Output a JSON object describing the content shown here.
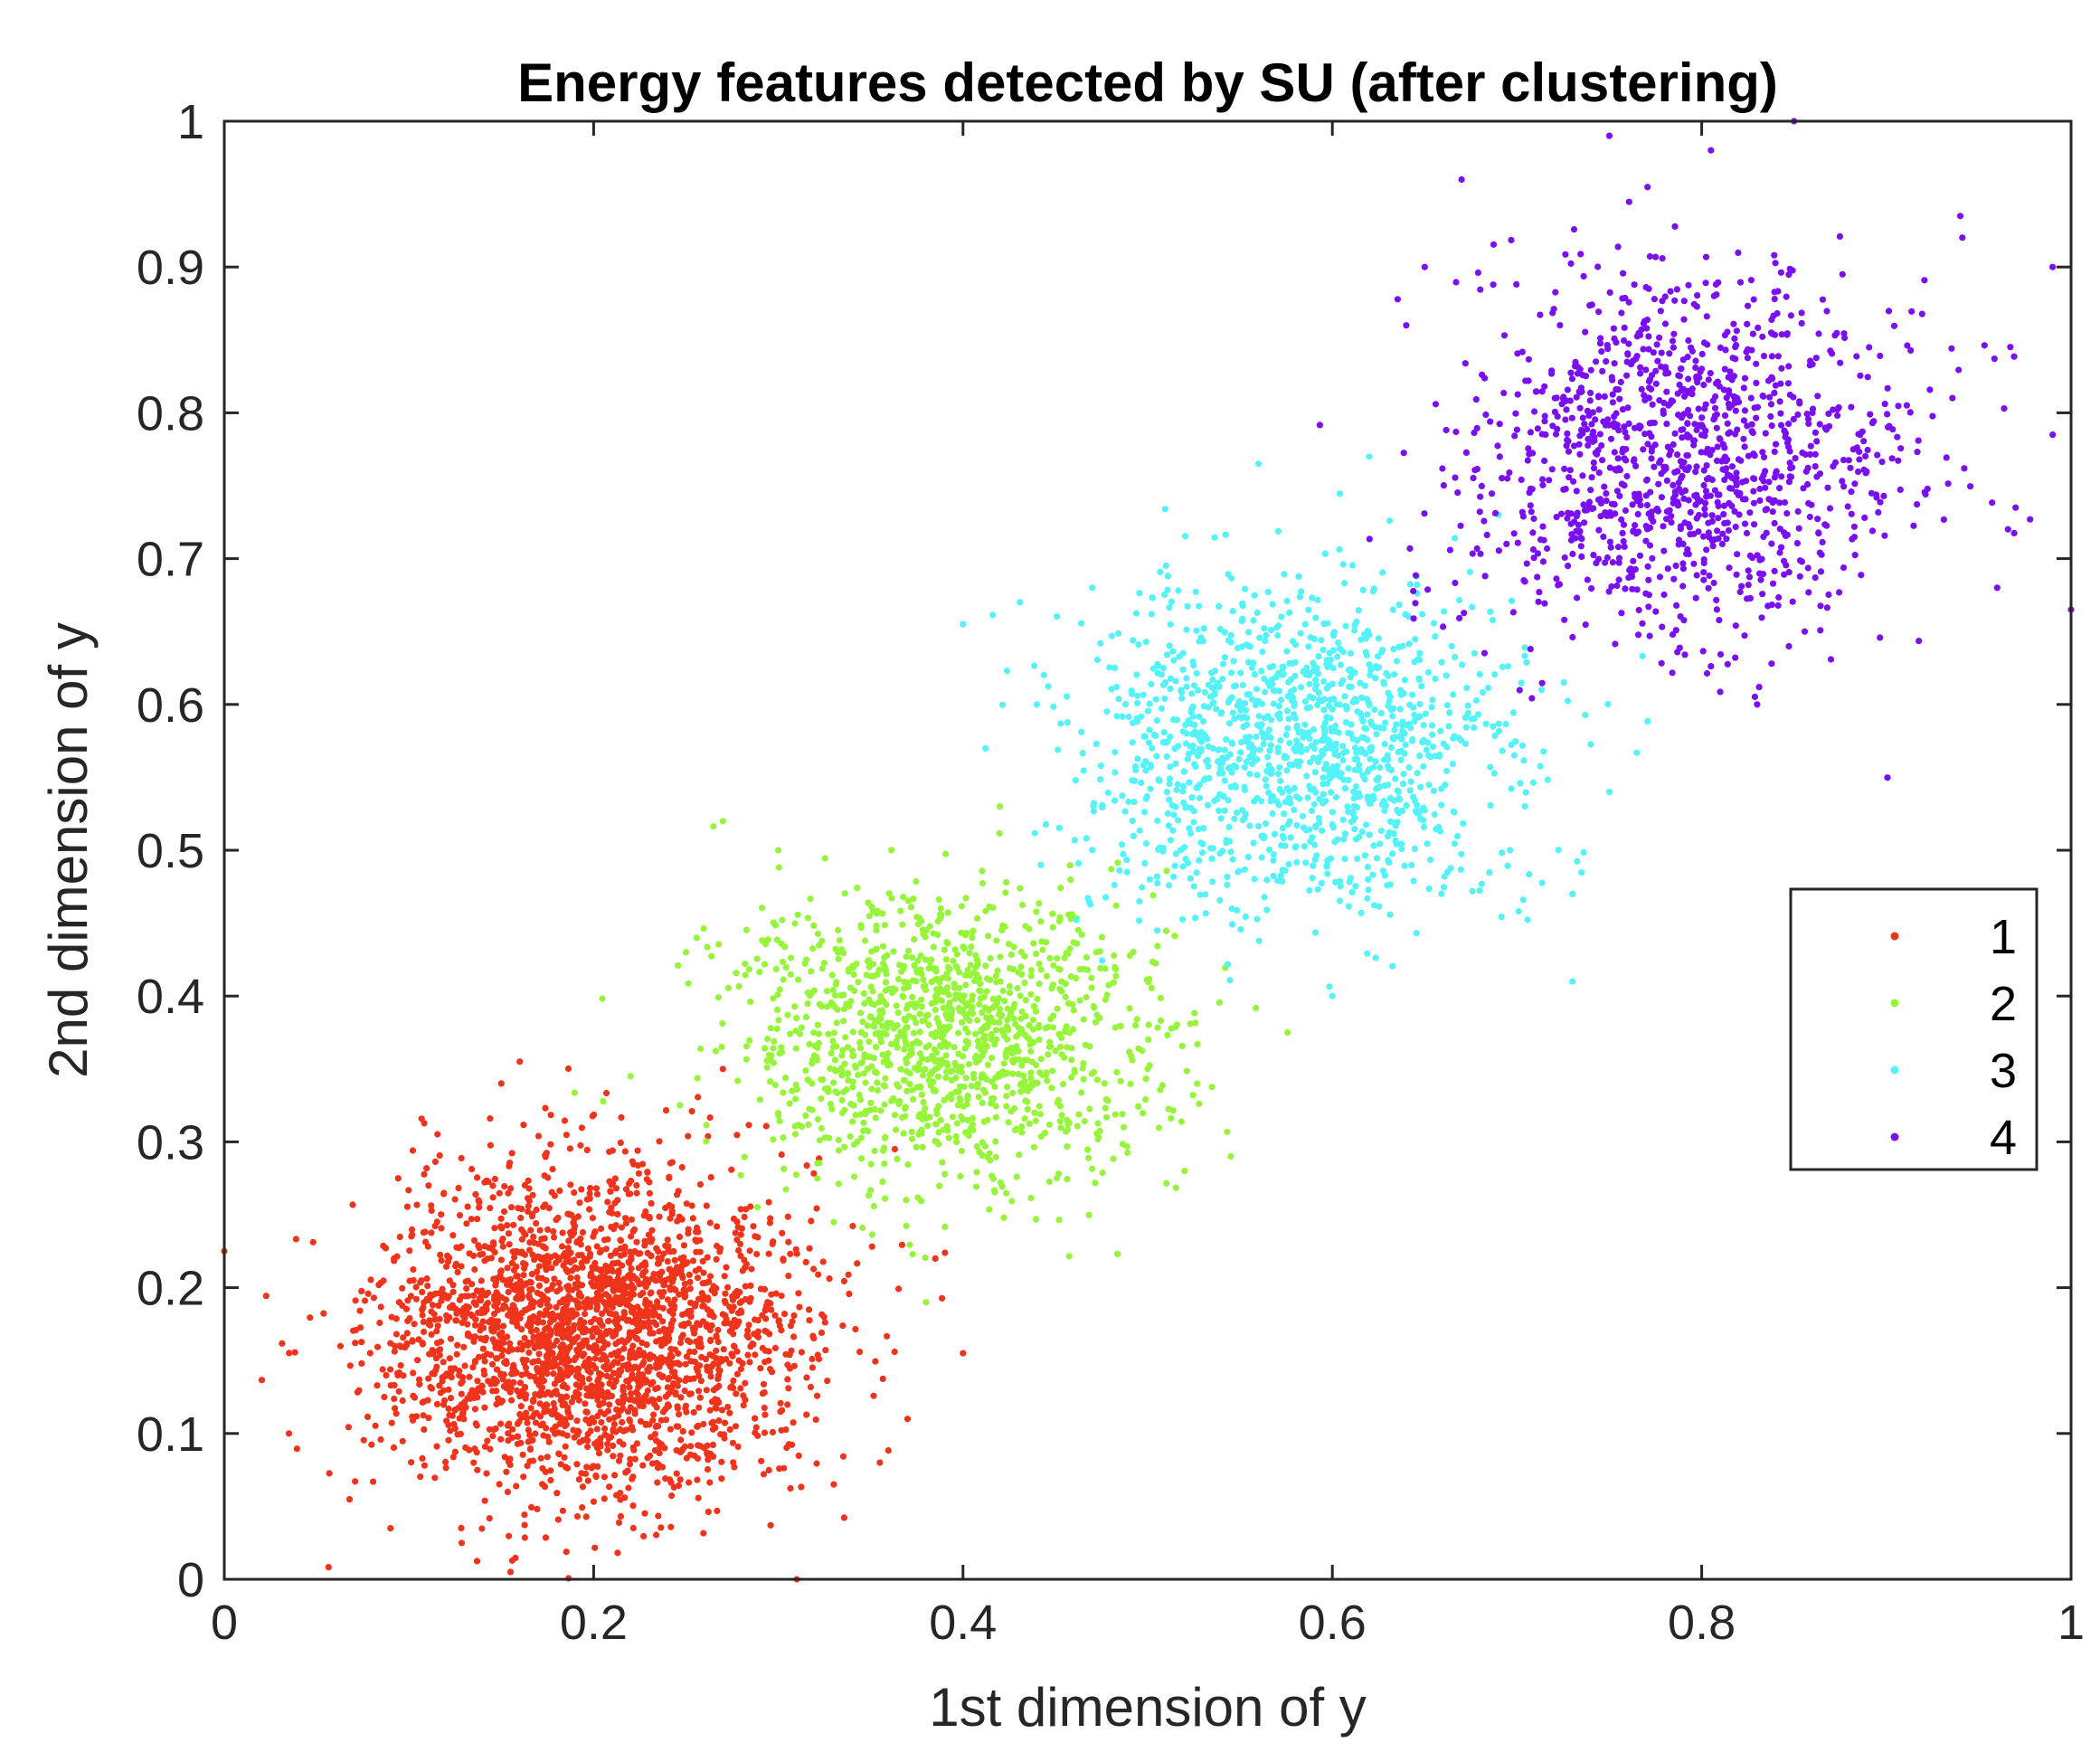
{
  "chart_data": {
    "type": "scatter",
    "title": "Energy features detected by SU (after clustering)",
    "xlabel": "1st dimension of y",
    "ylabel": "2nd dimension of y",
    "xlim": [
      0,
      1
    ],
    "ylim": [
      0,
      1
    ],
    "xticks": [
      0,
      0.2,
      0.4,
      0.6,
      0.8,
      1
    ],
    "xtick_labels": [
      "0",
      "0.2",
      "0.4",
      "0.6",
      "0.8",
      "1"
    ],
    "yticks": [
      0,
      0.1,
      0.2,
      0.3,
      0.4,
      0.5,
      0.6,
      0.7,
      0.8,
      0.9,
      1
    ],
    "ytick_labels": [
      "0",
      "0.1",
      "0.2",
      "0.3",
      "0.4",
      "0.5",
      "0.6",
      "0.7",
      "0.8",
      "0.9",
      "1"
    ],
    "grid": false,
    "box": true,
    "legend_position": "right",
    "series": [
      {
        "name": "1",
        "color": "#f0341c",
        "center": [
          0.2,
          0.17
        ],
        "spread": [
          0.055,
          0.055
        ],
        "count": 2500,
        "points": [
          [
            0.0,
            0.225
          ],
          [
            0.035,
            0.1
          ],
          [
            0.31,
            0.0
          ],
          [
            0.155,
            0.005
          ],
          [
            0.4,
            0.155
          ],
          [
            0.385,
            0.22
          ],
          [
            0.37,
            0.11
          ],
          [
            0.355,
            0.08
          ],
          [
            0.09,
            0.035
          ],
          [
            0.16,
            0.355
          ],
          [
            0.15,
            0.34
          ],
          [
            0.27,
            0.35
          ]
        ]
      },
      {
        "name": "2",
        "color": "#96f53a",
        "center": [
          0.39,
          0.37
        ],
        "spread": [
          0.055,
          0.05
        ],
        "count": 1300,
        "points": [
          [
            0.27,
            0.52
          ],
          [
            0.3,
            0.5
          ],
          [
            0.25,
            0.43
          ],
          [
            0.52,
            0.28
          ],
          [
            0.545,
            0.29
          ],
          [
            0.38,
            0.19
          ],
          [
            0.42,
            0.53
          ],
          [
            0.33,
            0.245
          ],
          [
            0.5,
            0.35
          ],
          [
            0.22,
            0.345
          ]
        ]
      },
      {
        "name": "3",
        "color": "#55f2f7",
        "center": [
          0.58,
          0.57
        ],
        "spread": [
          0.06,
          0.055
        ],
        "count": 1300,
        "points": [
          [
            0.4,
            0.655
          ],
          [
            0.56,
            0.765
          ],
          [
            0.73,
            0.41
          ],
          [
            0.6,
            0.4
          ],
          [
            0.44,
            0.6
          ],
          [
            0.75,
            0.54
          ],
          [
            0.73,
            0.47
          ],
          [
            0.62,
            0.77
          ],
          [
            0.47,
            0.68
          ],
          [
            0.69,
            0.73
          ]
        ]
      },
      {
        "name": "4",
        "color": "#7a0ff2",
        "center": [
          0.79,
          0.77
        ],
        "spread": [
          0.06,
          0.06
        ],
        "count": 1200,
        "points": [
          [
            0.85,
            1.0
          ],
          [
            0.75,
            0.99
          ],
          [
            0.805,
            0.98
          ],
          [
            0.67,
            0.96
          ],
          [
            0.99,
            0.9
          ],
          [
            0.97,
            0.735
          ],
          [
            1.0,
            0.665
          ],
          [
            0.94,
            0.935
          ],
          [
            0.83,
            0.6
          ],
          [
            0.65,
            0.9
          ],
          [
            0.96,
            0.68
          ],
          [
            0.64,
            0.86
          ]
        ]
      }
    ]
  }
}
